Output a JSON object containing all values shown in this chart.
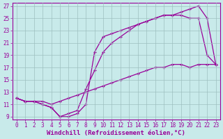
{
  "title": "",
  "xlabel": "Windchill (Refroidissement éolien,°C)",
  "ylabel": "",
  "bg_color": "#c8eaea",
  "grid_color": "#9dbfbf",
  "line_color": "#990099",
  "xlim": [
    -0.5,
    23.5
  ],
  "ylim": [
    8.5,
    27.5
  ],
  "xticks": [
    0,
    1,
    2,
    3,
    4,
    5,
    6,
    7,
    8,
    9,
    10,
    11,
    12,
    13,
    14,
    15,
    16,
    17,
    18,
    19,
    20,
    21,
    22,
    23
  ],
  "yticks": [
    9,
    11,
    13,
    15,
    17,
    19,
    21,
    23,
    25,
    27
  ],
  "line1_x": [
    0,
    1,
    2,
    3,
    4,
    5,
    6,
    7,
    8,
    9,
    10,
    11,
    12,
    13,
    14,
    15,
    16,
    17,
    18,
    19,
    20,
    21,
    22,
    23
  ],
  "line1_y": [
    12,
    11.5,
    11.5,
    11,
    10.5,
    9,
    9,
    9.5,
    11,
    19.5,
    22,
    22.5,
    23,
    23.5,
    24,
    24.5,
    25,
    25.5,
    25.5,
    26,
    26.5,
    27,
    25,
    17.5
  ],
  "line2_x": [
    0,
    1,
    2,
    3,
    4,
    5,
    6,
    7,
    8,
    9,
    10,
    11,
    12,
    13,
    14,
    15,
    16,
    17,
    18,
    19,
    20,
    21,
    22,
    23
  ],
  "line2_y": [
    12,
    11.5,
    11.5,
    11,
    10.5,
    9,
    9.5,
    10.0,
    13.5,
    16.5,
    19.5,
    21,
    22,
    23,
    24,
    24.5,
    25,
    25.5,
    25.5,
    25.5,
    25,
    25,
    19,
    17.5
  ],
  "line3_x": [
    0,
    1,
    2,
    3,
    4,
    5,
    6,
    7,
    8,
    9,
    10,
    11,
    12,
    13,
    14,
    15,
    16,
    17,
    18,
    19,
    20,
    21,
    22,
    23
  ],
  "line3_y": [
    12,
    11.5,
    11.5,
    11.5,
    11,
    11.5,
    12,
    12.5,
    13,
    13.5,
    14,
    14.5,
    15,
    15.5,
    16,
    16.5,
    17,
    17,
    17.5,
    17.5,
    17,
    17.5,
    17.5,
    17.5
  ],
  "tick_fontsize": 5.5,
  "label_fontsize": 6.5,
  "figsize": [
    3.2,
    2.0
  ],
  "dpi": 100
}
